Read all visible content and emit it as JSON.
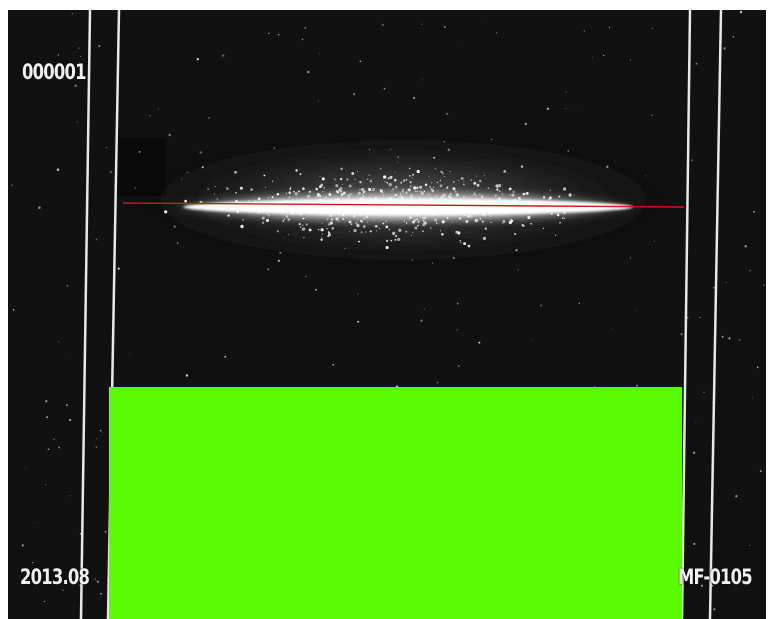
{
  "overlay": {
    "frame_counter": "000001",
    "date": "2013.08",
    "device_id": "MF-0105"
  },
  "colors": {
    "background": "#111111",
    "guide_lines": "#e8e8e8",
    "horizontal_marker": "#d01818",
    "mask_region": "#5cfc06",
    "cloud_core": "#ffffff"
  },
  "elements": {
    "mask_region": "green-mask",
    "marker_line": "red-horizontal-line"
  }
}
